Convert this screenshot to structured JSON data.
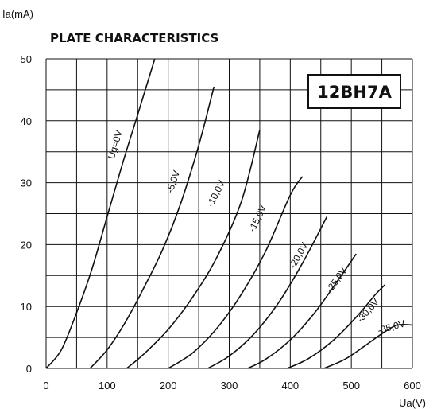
{
  "chart_data": {
    "type": "line",
    "title": "PLATE CHARACTERISTICS",
    "badge": "12BH7A",
    "xlabel": "Ua(V)",
    "ylabel": "Ia(mA)",
    "xlim": [
      0,
      600
    ],
    "ylim": [
      0,
      50
    ],
    "x_ticks": [
      0,
      100,
      200,
      300,
      400,
      500,
      600
    ],
    "y_ticks": [
      0,
      10,
      20,
      30,
      40,
      50
    ],
    "x_grid_step": 50,
    "y_grid_step": 5,
    "grid": true,
    "series": [
      {
        "name": "Ug=0V",
        "label": "Ug=0V",
        "label_at": [
          118,
          36
        ],
        "points": [
          [
            0,
            0
          ],
          [
            25,
            3
          ],
          [
            50,
            9
          ],
          [
            75,
            16
          ],
          [
            100,
            24.5
          ],
          [
            125,
            33
          ],
          [
            150,
            41
          ],
          [
            178,
            50
          ]
        ]
      },
      {
        "name": "-5,0V",
        "label": "-5,0V",
        "label_at": [
          213,
          30
        ],
        "points": [
          [
            72,
            0
          ],
          [
            100,
            3
          ],
          [
            130,
            7.5
          ],
          [
            160,
            13
          ],
          [
            190,
            19
          ],
          [
            220,
            26.5
          ],
          [
            250,
            36
          ],
          [
            275,
            45.5
          ]
        ]
      },
      {
        "name": "-10,0V",
        "label": "-10,0V",
        "label_at": [
          283,
          28
        ],
        "points": [
          [
            132,
            0
          ],
          [
            160,
            2.3
          ],
          [
            200,
            6.3
          ],
          [
            240,
            11.5
          ],
          [
            280,
            18
          ],
          [
            320,
            27
          ],
          [
            350,
            38.5
          ]
        ]
      },
      {
        "name": "-15,0V",
        "label": "-15,0V",
        "label_at": [
          351,
          24
        ],
        "points": [
          [
            200,
            0
          ],
          [
            240,
            2.5
          ],
          [
            280,
            6.5
          ],
          [
            320,
            12
          ],
          [
            360,
            19
          ],
          [
            400,
            28
          ],
          [
            420,
            31
          ]
        ]
      },
      {
        "name": "-20,0V",
        "label": "-20,0V",
        "label_at": [
          418,
          18
        ],
        "points": [
          [
            265,
            0
          ],
          [
            300,
            2
          ],
          [
            340,
            5.5
          ],
          [
            380,
            10.5
          ],
          [
            420,
            17
          ],
          [
            460,
            24.5
          ]
        ]
      },
      {
        "name": "-25,0V",
        "label": "-25,0V",
        "label_at": [
          480,
          14
        ],
        "points": [
          [
            330,
            0
          ],
          [
            360,
            1.5
          ],
          [
            400,
            4.6
          ],
          [
            440,
            9
          ],
          [
            480,
            14.5
          ],
          [
            508,
            18.5
          ]
        ]
      },
      {
        "name": "-30,0V",
        "label": "-30,0V",
        "label_at": [
          531,
          9
        ],
        "points": [
          [
            395,
            0
          ],
          [
            430,
            1.6
          ],
          [
            470,
            4.5
          ],
          [
            510,
            8.5
          ],
          [
            540,
            12
          ],
          [
            555,
            13.5
          ]
        ]
      },
      {
        "name": "-35,0V",
        "label": "-35,0V",
        "label_at": [
          567,
          6.2
        ],
        "points": [
          [
            455,
            0
          ],
          [
            490,
            1.5
          ],
          [
            520,
            3.5
          ],
          [
            550,
            5.6
          ],
          [
            575,
            7
          ],
          [
            600,
            7
          ]
        ]
      }
    ]
  }
}
